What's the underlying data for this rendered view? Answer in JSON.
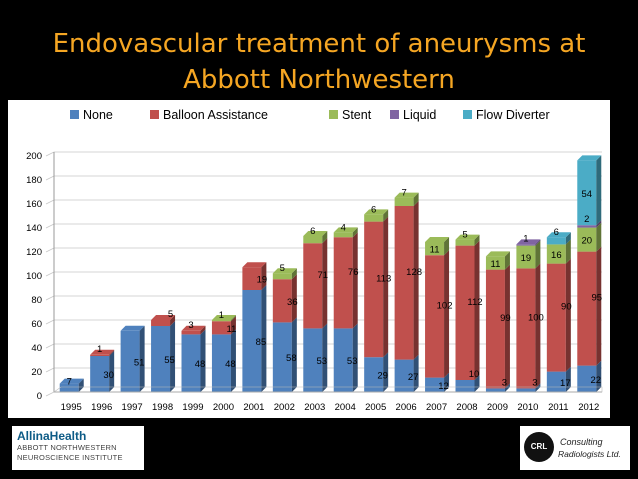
{
  "slide": {
    "title_line1": "Endovascular treatment of aneurysms at",
    "title_line2": "Abbott Northwestern"
  },
  "logos": {
    "left_line1": "AllinaHealth",
    "left_line2": "ABBOTT NORTHWESTERN",
    "left_line3": "NEUROSCIENCE INSTITUTE",
    "right_badge": "CRL",
    "right_line1": "Consulting",
    "right_line2": "Radiologists Ltd."
  },
  "chart_data": {
    "type": "bar",
    "stacked": true,
    "categories": [
      "1995",
      "1996",
      "1997",
      "1998",
      "1999",
      "2000",
      "2001",
      "2002",
      "2003",
      "2004",
      "2005",
      "2006",
      "2007",
      "2008",
      "2009",
      "2010",
      "2011",
      "2012"
    ],
    "series": [
      {
        "name": "None",
        "color": "#4f81bd",
        "values": [
          7,
          30,
          51,
          55,
          48,
          48,
          85,
          58,
          53,
          53,
          29,
          27,
          12,
          10,
          3,
          3,
          17,
          22
        ]
      },
      {
        "name": "Balloon Assistance",
        "color": "#c0504d",
        "values": [
          0,
          1,
          0,
          5,
          3,
          11,
          19,
          36,
          71,
          76,
          113,
          128,
          102,
          112,
          99,
          100,
          90,
          95
        ]
      },
      {
        "name": "Stent",
        "color": "#9bbb59",
        "values": [
          0,
          0,
          0,
          0,
          0,
          1,
          0,
          5,
          6,
          4,
          6,
          7,
          11,
          5,
          11,
          19,
          16,
          20
        ]
      },
      {
        "name": "Liquid",
        "color": "#8064a2",
        "values": [
          0,
          0,
          0,
          0,
          0,
          0,
          0,
          0,
          0,
          0,
          0,
          0,
          0,
          0,
          0,
          1,
          0,
          2
        ]
      },
      {
        "name": "Flow Diverter",
        "color": "#4bacc6",
        "values": [
          0,
          0,
          0,
          0,
          0,
          0,
          0,
          0,
          0,
          0,
          0,
          0,
          0,
          0,
          0,
          0,
          6,
          54
        ]
      }
    ],
    "labels": {
      "None": [
        "7",
        "30",
        "51",
        "55",
        "48",
        "48",
        "85",
        "58",
        "53",
        "53",
        "29",
        "27",
        "12",
        "10",
        "3",
        "3",
        "17",
        "22"
      ],
      "Balloon Assistance": [
        "",
        "1",
        "",
        "5",
        "3",
        "11",
        "19",
        "36",
        "71",
        "76",
        "113",
        "128",
        "102",
        "112",
        "99",
        "100",
        "90",
        "95"
      ],
      "Stent": [
        "",
        "",
        "",
        "",
        "",
        "1",
        "",
        "5",
        "6",
        "4",
        "6",
        "7",
        "11",
        "5",
        "11",
        "19",
        "16",
        "20"
      ],
      "Liquid": [
        "",
        "",
        "",
        "",
        "",
        "",
        "",
        "",
        "",
        "",
        "",
        "",
        "",
        "",
        "",
        "1",
        "",
        "2"
      ],
      "Flow Diverter": [
        "",
        "",
        "",
        "",
        "",
        "",
        "",
        "",
        "",
        "",
        "",
        "",
        "",
        "",
        "",
        "",
        "6",
        "54"
      ]
    },
    "yticks": [
      0,
      20,
      40,
      60,
      80,
      100,
      120,
      140,
      160,
      180,
      200
    ],
    "ylim": [
      0,
      200
    ],
    "legend_position": "top",
    "grid": true
  }
}
